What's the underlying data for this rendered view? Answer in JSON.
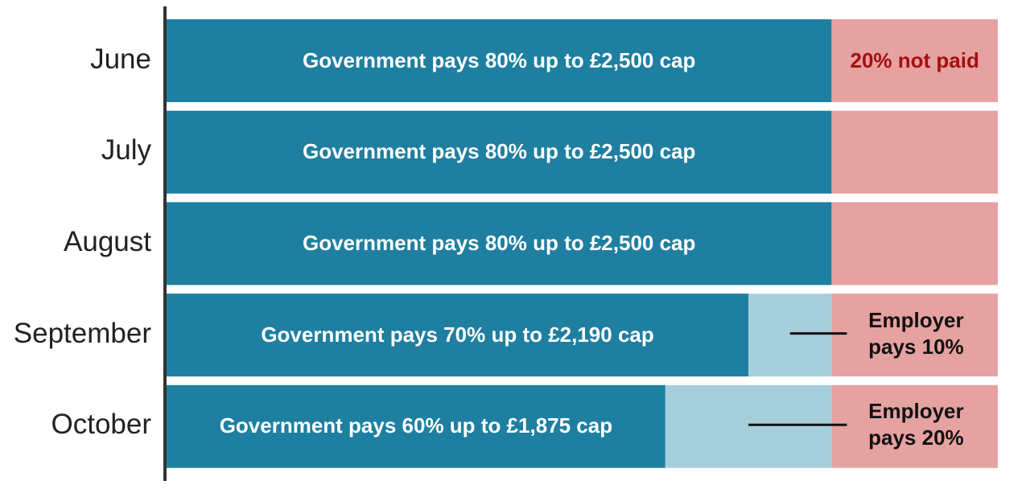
{
  "chart_data": {
    "type": "bar",
    "orientation": "horizontal",
    "stacked": true,
    "categories": [
      "June",
      "July",
      "August",
      "September",
      "October"
    ],
    "series": [
      {
        "color": "#1e7fa1",
        "label_color": "#ffffff",
        "values": [
          80,
          80,
          80,
          70,
          60
        ],
        "value_labels": [
          "Government pays 80% up to £2,500 cap",
          "Government pays 80% up to £2,500 cap",
          "Government pays 80% up to £2,500 cap",
          "Government pays 70% up to £2,190 cap",
          "Government pays 60% up to £1,875 cap"
        ]
      },
      {
        "color": "#a7cfdb",
        "label_color": "#111111",
        "values": [
          0,
          0,
          0,
          10,
          20
        ],
        "value_labels": [
          null,
          null,
          null,
          "Employer pays 10%",
          "Employer pays 20%"
        ]
      },
      {
        "color": "#e6a1a1",
        "label_color": "#a50f0f",
        "values": [
          20,
          20,
          20,
          20,
          20
        ],
        "value_labels": [
          "20% not paid",
          null,
          null,
          null,
          null
        ]
      }
    ]
  }
}
